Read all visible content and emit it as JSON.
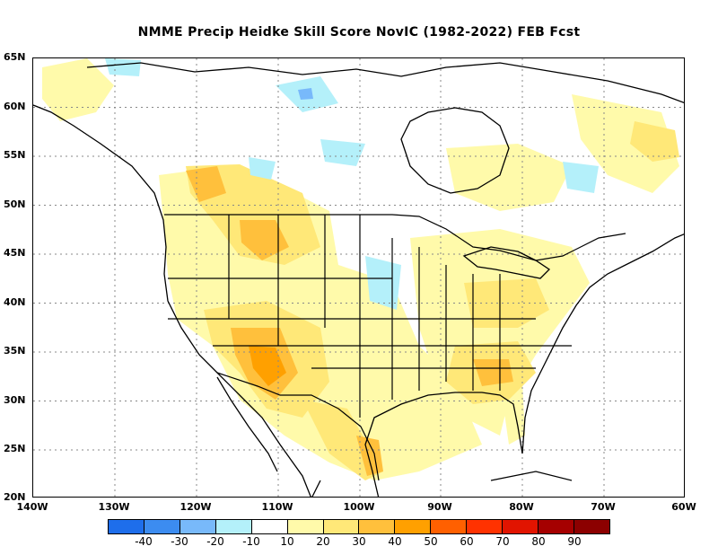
{
  "title": "NMME Precip Heidke Skill Score NovIC (1982-2022) FEB Fcst",
  "map": {
    "lat_labels": [
      "65N",
      "60N",
      "55N",
      "50N",
      "45N",
      "40N",
      "35N",
      "30N",
      "25N",
      "20N"
    ],
    "lon_labels": [
      "140W",
      "130W",
      "120W",
      "110W",
      "100W",
      "90W",
      "80W",
      "70W",
      "60W"
    ],
    "grid": "dotted",
    "region": "North America",
    "lat_range": [
      20,
      65
    ],
    "lon_range": [
      -140,
      -60
    ]
  },
  "legend": {
    "labels": [
      "-40",
      "-30",
      "-20",
      "-10",
      "10",
      "20",
      "30",
      "40",
      "50",
      "60",
      "70",
      "80",
      "90"
    ],
    "colors": [
      "#1e6eeb",
      "#3c8cf0",
      "#78b9fa",
      "#b4f0fa",
      "#ffffff",
      "#fffaaa",
      "#ffe878",
      "#ffc03c",
      "#ffa000",
      "#ff6000",
      "#ff3200",
      "#e11400",
      "#a50000"
    ]
  },
  "colors": {
    "skill_10_20": "#fffaaa",
    "skill_20_30": "#ffe878",
    "skill_30_40": "#ffc03c",
    "skill_40_50": "#ffa000",
    "skill_neg": "#b4f0fa",
    "skill_neg2": "#78b9fa"
  }
}
